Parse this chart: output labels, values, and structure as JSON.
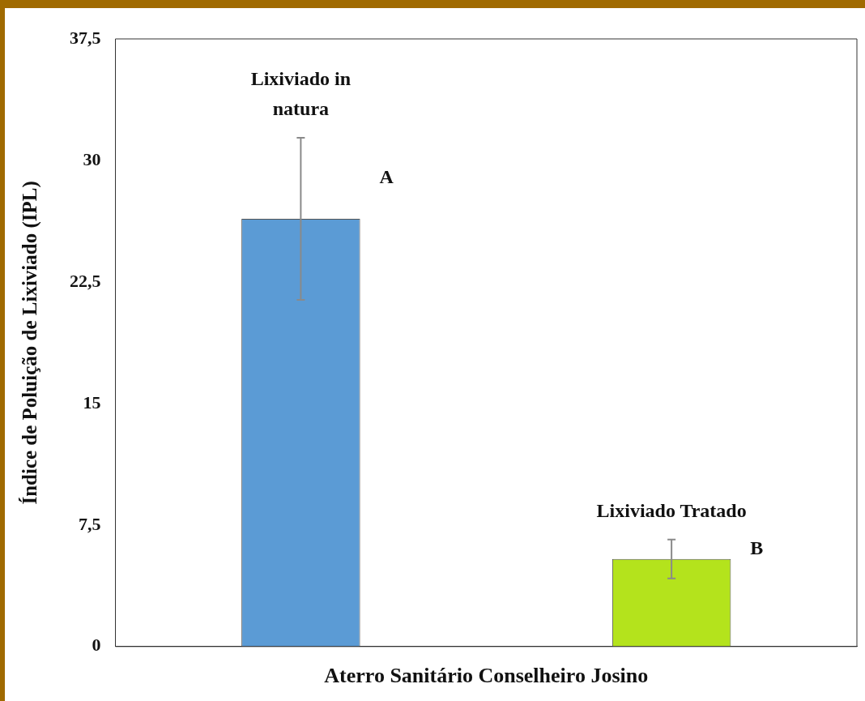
{
  "chart_data": {
    "type": "bar",
    "xlabel": "Aterro Sanitário Conselheiro Josino",
    "ylabel": "Índice de Poluição de Lixiviado (IPL)",
    "categories": [
      "Lixiviado in natura",
      "Lixiviado Tratado"
    ],
    "values": [
      26.4,
      5.4
    ],
    "colors": [
      "#5b9bd5",
      "#b4e31c"
    ],
    "errors": [
      5.0,
      1.2
    ],
    "ylim": [
      0,
      37.5
    ],
    "yticks": [
      0,
      {
        "value": 7.5,
        "label": "7,5"
      },
      15,
      {
        "value": 22.5,
        "label": "22,5"
      },
      30,
      {
        "value": 37.5,
        "label": "37,5"
      }
    ],
    "tick_labels": "y",
    "grid": false,
    "legend": false,
    "annotations": [
      "A",
      "B"
    ]
  }
}
